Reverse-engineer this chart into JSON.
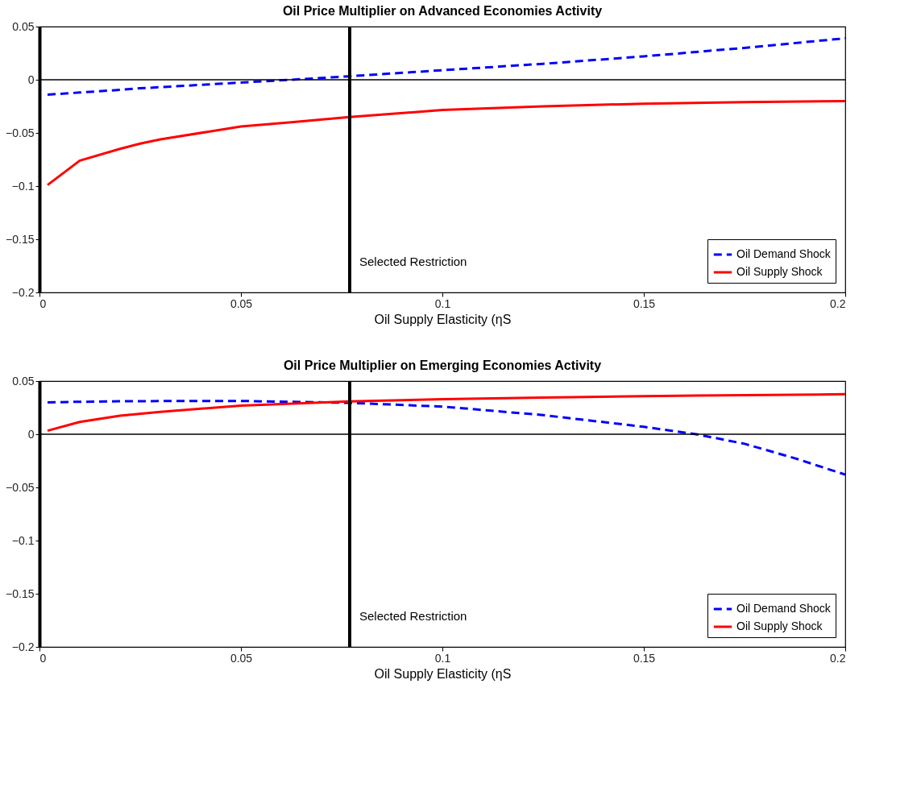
{
  "chart_data": [
    {
      "type": "line",
      "title": "Oil Price Multiplier on Advanced Economies Activity",
      "xlabel": "Oil Supply Elasticity (ηS",
      "x": [
        0.002,
        0.01,
        0.02,
        0.025,
        0.03,
        0.05,
        0.0625,
        0.077,
        0.1,
        0.125,
        0.15,
        0.175,
        0.2
      ],
      "series": [
        {
          "name": "Oil Demand Shock",
          "color": "#0000ff",
          "line_style": "dashed",
          "values": [
            -0.014,
            -0.012,
            -0.0095,
            -0.008,
            -0.007,
            -0.0026,
            0.0,
            0.0033,
            0.009,
            0.015,
            0.022,
            0.03,
            0.039
          ]
        },
        {
          "name": "Oil Supply Shock",
          "color": "#ff0000",
          "line_style": "solid",
          "values": [
            -0.099,
            -0.076,
            -0.065,
            -0.06,
            -0.056,
            -0.044,
            -0.04,
            -0.035,
            -0.0285,
            -0.025,
            -0.0225,
            -0.021,
            -0.02
          ]
        }
      ],
      "xlim": [
        0,
        0.2
      ],
      "ylim": [
        -0.2,
        0.05
      ],
      "xticks": [
        0,
        0.05,
        0.1,
        0.15,
        0.2
      ],
      "yticks": [
        -0.2,
        -0.15,
        -0.1,
        -0.05,
        0,
        0.05
      ],
      "ref_lines": [
        {
          "axis": "x",
          "value": 0.077,
          "label": "Selected Restriction",
          "color": "#000000"
        },
        {
          "axis": "y",
          "value": 0,
          "color": "#000000"
        }
      ],
      "grid": false,
      "legend": "bottom right"
    },
    {
      "type": "line",
      "title": "Oil Price Multiplier on Emerging Economies Activity",
      "xlabel": "Oil Supply Elasticity (ηS",
      "x": [
        0.002,
        0.01,
        0.02,
        0.03,
        0.05,
        0.077,
        0.1,
        0.125,
        0.15,
        0.163,
        0.175,
        0.1875,
        0.2
      ],
      "series": [
        {
          "name": "Oil Demand Shock",
          "color": "#0000ff",
          "line_style": "dashed",
          "values": [
            0.03,
            0.0305,
            0.031,
            0.0312,
            0.0313,
            0.0295,
            0.026,
            0.018,
            0.007,
            0.0,
            -0.009,
            -0.0226,
            -0.038
          ]
        },
        {
          "name": "Oil Supply Shock",
          "color": "#ff0000",
          "line_style": "solid",
          "values": [
            0.0033,
            0.0115,
            0.0174,
            0.021,
            0.0269,
            0.0308,
            0.033,
            0.0345,
            0.0358,
            0.0363,
            0.0367,
            0.0372,
            0.0376
          ]
        }
      ],
      "xlim": [
        0,
        0.2
      ],
      "ylim": [
        -0.2,
        0.05
      ],
      "xticks": [
        0,
        0.05,
        0.1,
        0.15,
        0.2
      ],
      "yticks": [
        -0.2,
        -0.15,
        -0.1,
        -0.05,
        0,
        0.05
      ],
      "ref_lines": [
        {
          "axis": "x",
          "value": 0.077,
          "label": "Selected Restriction",
          "color": "#000000"
        },
        {
          "axis": "y",
          "value": 0,
          "color": "#000000"
        }
      ],
      "grid": false,
      "legend": "bottom right"
    }
  ]
}
